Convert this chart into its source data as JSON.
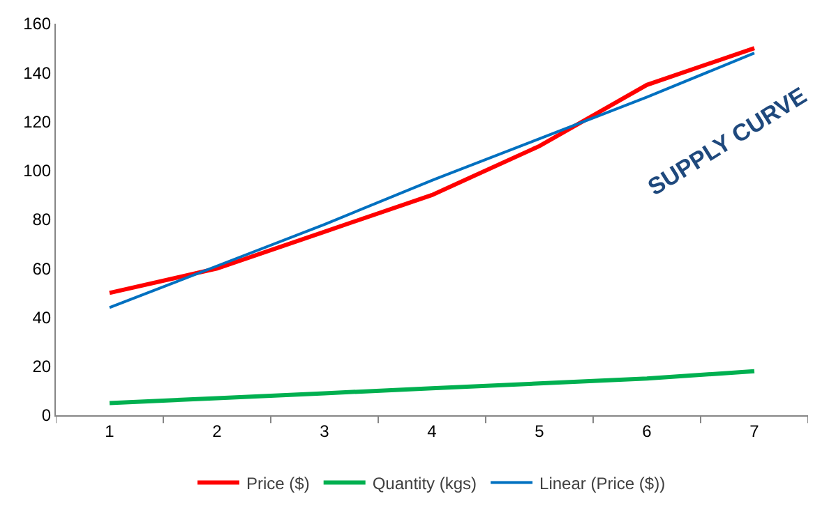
{
  "chart_data": {
    "type": "line",
    "categories": [
      "1",
      "2",
      "3",
      "4",
      "5",
      "6",
      "7"
    ],
    "series": [
      {
        "name": "Price ($)",
        "color": "#ff0000",
        "values": [
          50,
          60,
          75,
          90,
          110,
          135,
          150
        ]
      },
      {
        "name": "Quantity (kgs)",
        "color": "#00b050",
        "values": [
          5,
          7,
          9,
          11,
          13,
          15,
          18
        ]
      },
      {
        "name": "Linear (Price ($))",
        "color": "#0070c0",
        "values": [
          44,
          61,
          78,
          96,
          113,
          130,
          148
        ]
      }
    ],
    "ylim": [
      0,
      160
    ],
    "yticks": [
      0,
      20,
      40,
      60,
      80,
      100,
      120,
      140,
      160
    ],
    "legend": "bottom",
    "marker": "none",
    "line_style": "solid",
    "annotations": [
      "SUPPLY CURVE"
    ]
  }
}
